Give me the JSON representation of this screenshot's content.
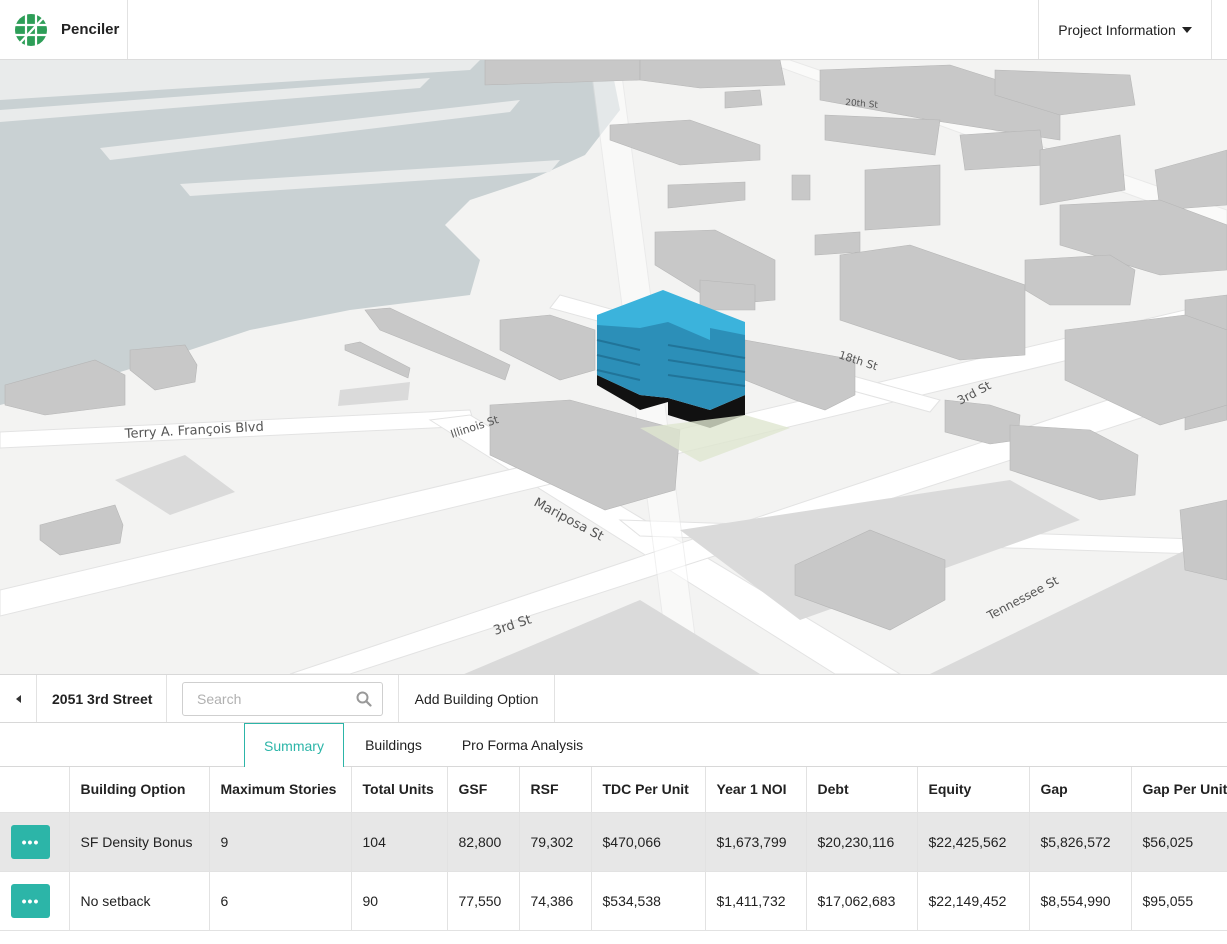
{
  "header": {
    "app_name": "Penciler",
    "project_menu_label": "Project Information"
  },
  "map": {
    "street_labels": [
      "Terry A. François Blvd",
      "Illinois St",
      "Mariposa St",
      "18th St",
      "3rd St",
      "3rd St",
      "Tennessee St",
      "20th St"
    ],
    "colors": {
      "water": "#c9d1d3",
      "land": "#f3f3f2",
      "road": "#ffffff",
      "building": "#c4c4c4",
      "highlight_building": "#3aafd6"
    }
  },
  "toolbar": {
    "address": "2051 3rd Street",
    "search_placeholder": "Search",
    "add_option_label": "Add Building Option"
  },
  "tabs": [
    {
      "label": "Summary",
      "active": true
    },
    {
      "label": "Buildings",
      "active": false
    },
    {
      "label": "Pro Forma Analysis",
      "active": false
    }
  ],
  "table": {
    "columns": [
      "Building Option",
      "Maximum Stories",
      "Total Units",
      "GSF",
      "RSF",
      "TDC Per Unit",
      "Year 1 NOI",
      "Debt",
      "Equity",
      "Gap",
      "Gap Per Unit"
    ],
    "rows": [
      {
        "action": "•••",
        "cells": [
          "SF Density Bonus",
          "9",
          "104",
          "82,800",
          "79,302",
          "$470,066",
          "$1,673,799",
          "$20,230,116",
          "$22,425,562",
          "$5,826,572",
          "$56,025"
        ]
      },
      {
        "action": "•••",
        "cells": [
          "No setback",
          "6",
          "90",
          "77,550",
          "74,386",
          "$534,538",
          "$1,411,732",
          "$17,062,683",
          "$22,149,452",
          "$8,554,990",
          "$95,055"
        ]
      }
    ]
  }
}
